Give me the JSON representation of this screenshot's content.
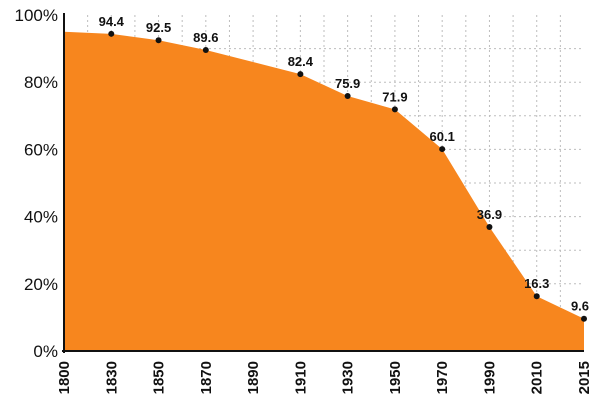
{
  "chart_data": {
    "type": "area",
    "x": [
      1800,
      1830,
      1850,
      1870,
      1890,
      1910,
      1930,
      1950,
      1970,
      1990,
      2010,
      2015
    ],
    "x_tick_labels": [
      "1800",
      "1830",
      "1850",
      "1870",
      "1890",
      "1910",
      "1930",
      "1950",
      "1970",
      "1990",
      "2010",
      "2015"
    ],
    "series": [
      {
        "points": [
          {
            "x": 1800,
            "y": 95.0,
            "label": ""
          },
          {
            "x": 1830,
            "y": 94.4,
            "label": "94.4"
          },
          {
            "x": 1850,
            "y": 92.5,
            "label": "92.5"
          },
          {
            "x": 1870,
            "y": 89.6,
            "label": "89.6"
          },
          {
            "x": 1910,
            "y": 82.4,
            "label": "82.4"
          },
          {
            "x": 1930,
            "y": 75.9,
            "label": "75.9"
          },
          {
            "x": 1950,
            "y": 71.9,
            "label": "71.9"
          },
          {
            "x": 1970,
            "y": 60.1,
            "label": "60.1"
          },
          {
            "x": 1990,
            "y": 36.9,
            "label": "36.9"
          },
          {
            "x": 2010,
            "y": 16.3,
            "label": "16.3"
          },
          {
            "x": 2015,
            "y": 9.6,
            "label": "9.6"
          }
        ]
      }
    ],
    "y_ticks": [
      0,
      20,
      40,
      60,
      80,
      100
    ],
    "y_tick_labels": [
      "0%",
      "20%",
      "40%",
      "60%",
      "80%",
      "100%"
    ],
    "ylim": [
      0,
      100
    ],
    "grid": "dotted",
    "legend": "none",
    "colors": {
      "fill": "#f7861e",
      "marker": "#111111",
      "grid": "#bdbdbd",
      "axis": "#111111"
    }
  }
}
